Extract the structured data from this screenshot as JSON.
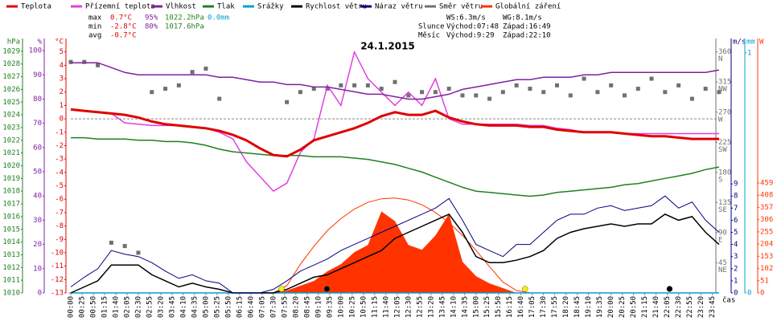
{
  "chart_data": {
    "type": "line",
    "title": "24.1.2015",
    "x_label": "čas",
    "xlim": [
      0,
      1440
    ],
    "x": [
      0,
      30,
      60,
      90,
      120,
      150,
      180,
      210,
      240,
      270,
      300,
      330,
      360,
      390,
      420,
      450,
      480,
      510,
      540,
      570,
      600,
      630,
      660,
      690,
      720,
      750,
      780,
      810,
      840,
      870,
      900,
      930,
      960,
      990,
      1020,
      1050,
      1080,
      1110,
      1140,
      1170,
      1200,
      1230,
      1260,
      1290,
      1320,
      1350,
      1380,
      1410,
      1440
    ],
    "xticks": [
      {
        "value": 0,
        "label": "00:00"
      },
      {
        "value": 25,
        "label": "00:25"
      },
      {
        "value": 50,
        "label": "00:50"
      },
      {
        "value": 75,
        "label": "01:15"
      },
      {
        "value": 100,
        "label": "01:40"
      },
      {
        "value": 125,
        "label": "02:05"
      },
      {
        "value": 150,
        "label": "02:30"
      },
      {
        "value": 175,
        "label": "02:55"
      },
      {
        "value": 200,
        "label": "03:20"
      },
      {
        "value": 225,
        "label": "03:45"
      },
      {
        "value": 250,
        "label": "04:10"
      },
      {
        "value": 275,
        "label": "04:35"
      },
      {
        "value": 300,
        "label": "05:00"
      },
      {
        "value": 325,
        "label": "05:25"
      },
      {
        "value": 350,
        "label": "05:50"
      },
      {
        "value": 375,
        "label": "06:15"
      },
      {
        "value": 400,
        "label": "06:40"
      },
      {
        "value": 425,
        "label": "07:05"
      },
      {
        "value": 450,
        "label": "07:30"
      },
      {
        "value": 475,
        "label": "07:55"
      },
      {
        "value": 500,
        "label": "08:20"
      },
      {
        "value": 525,
        "label": "08:45"
      },
      {
        "value": 550,
        "label": "09:10"
      },
      {
        "value": 575,
        "label": "09:35"
      },
      {
        "value": 600,
        "label": "10:00"
      },
      {
        "value": 625,
        "label": "10:25"
      },
      {
        "value": 650,
        "label": "10:50"
      },
      {
        "value": 675,
        "label": "11:15"
      },
      {
        "value": 700,
        "label": "11:40"
      },
      {
        "value": 725,
        "label": "12:05"
      },
      {
        "value": 750,
        "label": "12:30"
      },
      {
        "value": 775,
        "label": "12:55"
      },
      {
        "value": 800,
        "label": "13:20"
      },
      {
        "value": 825,
        "label": "13:45"
      },
      {
        "value": 850,
        "label": "14:10"
      },
      {
        "value": 875,
        "label": "14:35"
      },
      {
        "value": 900,
        "label": "15:00"
      },
      {
        "value": 925,
        "label": "15:25"
      },
      {
        "value": 950,
        "label": "15:50"
      },
      {
        "value": 975,
        "label": "16:15"
      },
      {
        "value": 1000,
        "label": "16:40"
      },
      {
        "value": 1025,
        "label": "17:05"
      },
      {
        "value": 1050,
        "label": "17:30"
      },
      {
        "value": 1075,
        "label": "17:55"
      },
      {
        "value": 1100,
        "label": "18:20"
      },
      {
        "value": 1125,
        "label": "18:45"
      },
      {
        "value": 1150,
        "label": "19:10"
      },
      {
        "value": 1175,
        "label": "19:35"
      },
      {
        "value": 1200,
        "label": "20:00"
      },
      {
        "value": 1225,
        "label": "20:25"
      },
      {
        "value": 1250,
        "label": "20:50"
      },
      {
        "value": 1275,
        "label": "21:15"
      },
      {
        "value": 1300,
        "label": "21:40"
      },
      {
        "value": 1325,
        "label": "22:05"
      },
      {
        "value": 1350,
        "label": "22:30"
      },
      {
        "value": 1375,
        "label": "22:55"
      },
      {
        "value": 1400,
        "label": "23:20"
      },
      {
        "value": 1425,
        "label": "23:45"
      }
    ],
    "axes": {
      "press": {
        "unit": "hPa",
        "color": "#208020",
        "lim": [
          1010,
          1030
        ],
        "ticks": [
          1010,
          1011,
          1012,
          1013,
          1014,
          1015,
          1016,
          1017,
          1018,
          1019,
          1020,
          1021,
          1022,
          1023,
          1024,
          1025,
          1026,
          1027,
          1028,
          1029
        ]
      },
      "hum": {
        "unit": "%",
        "color": "#8020a0",
        "lim": [
          0,
          105
        ],
        "ticks": [
          0,
          10,
          20,
          30,
          40,
          50,
          60,
          70,
          80,
          90,
          100
        ]
      },
      "temp": {
        "unit": "°C",
        "color": "#e00000",
        "lim": [
          -13,
          6
        ],
        "ticks": [
          -13,
          -12,
          -11,
          -10,
          -9,
          -8,
          -7,
          -6,
          -5,
          -4,
          -3,
          -2,
          -1,
          0,
          1,
          2,
          3,
          4,
          5
        ]
      },
      "dir": {
        "color": "#707070",
        "lim": [
          0,
          380
        ],
        "ticks": [
          {
            "value": 45,
            "label": "45",
            "dir": "NE"
          },
          {
            "value": 90,
            "label": "90",
            "dir": "E"
          },
          {
            "value": 135,
            "label": "135",
            "dir": "SE"
          },
          {
            "value": 180,
            "label": "180",
            "dir": "S"
          },
          {
            "value": 225,
            "label": "225",
            "dir": "SW"
          },
          {
            "value": 270,
            "label": "270",
            "dir": "W"
          },
          {
            "value": 315,
            "label": "315",
            "dir": "NW"
          },
          {
            "value": 360,
            "label": "360",
            "dir": "N"
          }
        ]
      },
      "wind": {
        "unit": "m/s",
        "color": "#000080",
        "lim": [
          0,
          21
        ],
        "ticks": [
          0,
          1,
          2,
          3,
          4,
          5,
          6,
          7,
          8,
          9
        ]
      },
      "rain": {
        "unit": "mm",
        "color": "#00a0d0",
        "lim": [
          0,
          1.06
        ],
        "ticks": [
          0,
          1
        ]
      },
      "rad": {
        "unit": "W",
        "color": "#ff3300",
        "lim": [
          0,
          1062
        ],
        "ticks": [
          0,
          51,
          102,
          153,
          204,
          255,
          306,
          357,
          408,
          459
        ]
      }
    },
    "series": [
      {
        "name": "Teplota",
        "color": "#e00000",
        "axis": "temp",
        "style": "thick",
        "values": [
          0.7,
          0.6,
          0.5,
          0.4,
          0.3,
          0.1,
          -0.2,
          -0.4,
          -0.5,
          -0.6,
          -0.7,
          -0.9,
          -1.2,
          -1.6,
          -2.2,
          -2.7,
          -2.8,
          -2.3,
          -1.6,
          -1.3,
          -1.0,
          -0.7,
          -0.3,
          0.2,
          0.5,
          0.3,
          0.3,
          0.6,
          0.1,
          -0.2,
          -0.4,
          -0.5,
          -0.5,
          -0.5,
          -0.6,
          -0.6,
          -0.8,
          -0.9,
          -1.0,
          -1.0,
          -1.0,
          -1.1,
          -1.2,
          -1.3,
          -1.3,
          -1.4,
          -1.5,
          -1.5,
          -1.5
        ]
      },
      {
        "name": "Přízemní teplota",
        "color": "#e040e0",
        "axis": "temp",
        "style": "line",
        "values": [
          0.7,
          0.6,
          0.5,
          0.4,
          -0.3,
          -0.4,
          -0.5,
          -0.5,
          -0.5,
          -0.6,
          -0.7,
          -1.0,
          -1.5,
          -3.2,
          -4.3,
          -5.4,
          -4.8,
          -2.5,
          -1.5,
          2.5,
          1.0,
          5.0,
          3.0,
          2.0,
          1.0,
          2.0,
          1.0,
          3.0,
          0.0,
          -0.4,
          -0.4,
          -0.4,
          -0.4,
          -0.4,
          -0.5,
          -0.5,
          -0.7,
          -0.8,
          -1.0,
          -1.0,
          -1.0,
          -1.1,
          -1.1,
          -1.1,
          -1.1,
          -1.1,
          -1.1,
          -1.1,
          -1.1
        ]
      },
      {
        "name": "Vlhkost",
        "color": "#8020a0",
        "axis": "hum",
        "style": "line",
        "values": [
          95,
          95,
          95,
          93,
          91,
          90,
          90,
          90,
          90,
          90,
          90,
          89,
          89,
          88,
          87,
          87,
          86,
          86,
          85,
          85,
          84,
          83,
          82,
          82,
          81,
          80,
          80,
          81,
          82,
          84,
          85,
          86,
          87,
          88,
          88,
          89,
          89,
          89,
          90,
          90,
          91,
          91,
          91,
          91,
          91,
          91,
          91,
          91,
          92
        ]
      },
      {
        "name": "Tlak",
        "color": "#208020",
        "axis": "press",
        "style": "line",
        "values": [
          1022.2,
          1022.2,
          1022.1,
          1022.1,
          1022.1,
          1022.0,
          1022.0,
          1021.9,
          1021.9,
          1021.8,
          1021.6,
          1021.3,
          1021.1,
          1021.0,
          1020.9,
          1020.8,
          1020.8,
          1020.8,
          1020.7,
          1020.7,
          1020.7,
          1020.6,
          1020.5,
          1020.3,
          1020.1,
          1019.8,
          1019.5,
          1019.1,
          1018.7,
          1018.3,
          1018.0,
          1017.9,
          1017.8,
          1017.7,
          1017.6,
          1017.7,
          1017.9,
          1018.0,
          1018.1,
          1018.2,
          1018.3,
          1018.5,
          1018.6,
          1018.8,
          1019.0,
          1019.2,
          1019.4,
          1019.7,
          1019.9
        ]
      },
      {
        "name": "Srážky",
        "color": "#00a0d0",
        "axis": "rain",
        "style": "line",
        "values": [
          0,
          0,
          0,
          0,
          0,
          0,
          0,
          0,
          0,
          0,
          0,
          0,
          0,
          0,
          0,
          0,
          0,
          0,
          0,
          0,
          0,
          0,
          0,
          0,
          0,
          0,
          0,
          0,
          0,
          0,
          0,
          0,
          0,
          0,
          0,
          0,
          0,
          0,
          0,
          0,
          0,
          0,
          0,
          0,
          0,
          0,
          0,
          0,
          0
        ]
      },
      {
        "name": "Rychlost větru",
        "color": "#000000",
        "axis": "wind",
        "style": "line",
        "values": [
          0,
          0.5,
          1,
          2.3,
          2.3,
          2.3,
          1.5,
          1,
          0.5,
          0.8,
          0.5,
          0.3,
          0,
          0,
          0,
          0,
          0.3,
          0.8,
          1.3,
          1.5,
          2,
          2.5,
          3,
          3.5,
          4.5,
          5,
          5.5,
          6,
          6.5,
          5,
          3,
          2.5,
          2.5,
          2.7,
          3,
          3.5,
          4.5,
          5,
          5.3,
          5.5,
          5.7,
          5.5,
          5.7,
          5.7,
          6.5,
          6,
          6.3,
          5,
          4
        ]
      },
      {
        "name": "Náraz větru",
        "color": "#000080",
        "axis": "wind",
        "style": "thin",
        "values": [
          0.5,
          1.3,
          2,
          3.5,
          3.2,
          3,
          2.5,
          1.8,
          1.2,
          1.5,
          1,
          0.8,
          0,
          0,
          0,
          0.3,
          1,
          1.8,
          2.3,
          2.8,
          3.5,
          4,
          4.5,
          5,
          5.5,
          6,
          6.5,
          7,
          7.8,
          6,
          4,
          3.5,
          3,
          4,
          4,
          5,
          6,
          6.5,
          6.5,
          7,
          7.2,
          6.8,
          7,
          7.2,
          8,
          7,
          7.5,
          6,
          5
        ]
      },
      {
        "name": "Směr větru",
        "color": "#707070",
        "axis": "dir",
        "style": "scatter",
        "values": [
          345,
          345,
          340,
          75,
          70,
          60,
          300,
          305,
          310,
          330,
          335,
          290,
          null,
          null,
          null,
          null,
          285,
          300,
          305,
          305,
          310,
          310,
          310,
          305,
          315,
          295,
          300,
          300,
          305,
          295,
          295,
          290,
          300,
          310,
          305,
          300,
          310,
          295,
          320,
          300,
          310,
          295,
          305,
          320,
          300,
          310,
          290,
          305,
          300
        ]
      },
      {
        "name": "Globální záření",
        "color": "#ff3300",
        "axis": "rad",
        "style": "area",
        "values": [
          0,
          0,
          0,
          0,
          0,
          0,
          0,
          0,
          0,
          0,
          0,
          0,
          0,
          0,
          0,
          0,
          10,
          30,
          50,
          90,
          120,
          170,
          200,
          340,
          300,
          200,
          180,
          240,
          330,
          130,
          70,
          40,
          20,
          0,
          0,
          0,
          0,
          0,
          0,
          0,
          0,
          0,
          0,
          0,
          0,
          0,
          0,
          0,
          0
        ],
        "clear_sky": [
          null,
          null,
          null,
          null,
          null,
          null,
          null,
          null,
          null,
          null,
          null,
          null,
          null,
          null,
          null,
          0,
          30,
          120,
          195,
          260,
          310,
          350,
          378,
          393,
          396,
          388,
          368,
          336,
          293,
          240,
          178,
          110,
          45,
          10,
          0,
          null,
          null,
          null,
          null,
          null,
          null,
          null,
          null,
          null,
          null,
          null,
          null,
          null,
          null
        ]
      }
    ],
    "stats": [
      {
        "label": "max",
        "temp": "0.7°C",
        "hum": "95%",
        "press": "1022.2hPa",
        "rain": "0.0mm"
      },
      {
        "label": "min",
        "temp": "-2.8°C",
        "hum": "80%",
        "press": "1017.6hPa"
      },
      {
        "label": "avg",
        "temp": "-0.7°C"
      }
    ],
    "wind_stats": {
      "ws": "WS:6.3m/s",
      "wg": "WG:8.1m/s"
    },
    "sun": {
      "label": "Slunce",
      "rise": "Východ:07:48",
      "set": "Západ:16:49"
    },
    "moon": {
      "label": "Měsíc",
      "rise": "Východ:9:29",
      "set": "Západ:22:10"
    }
  }
}
